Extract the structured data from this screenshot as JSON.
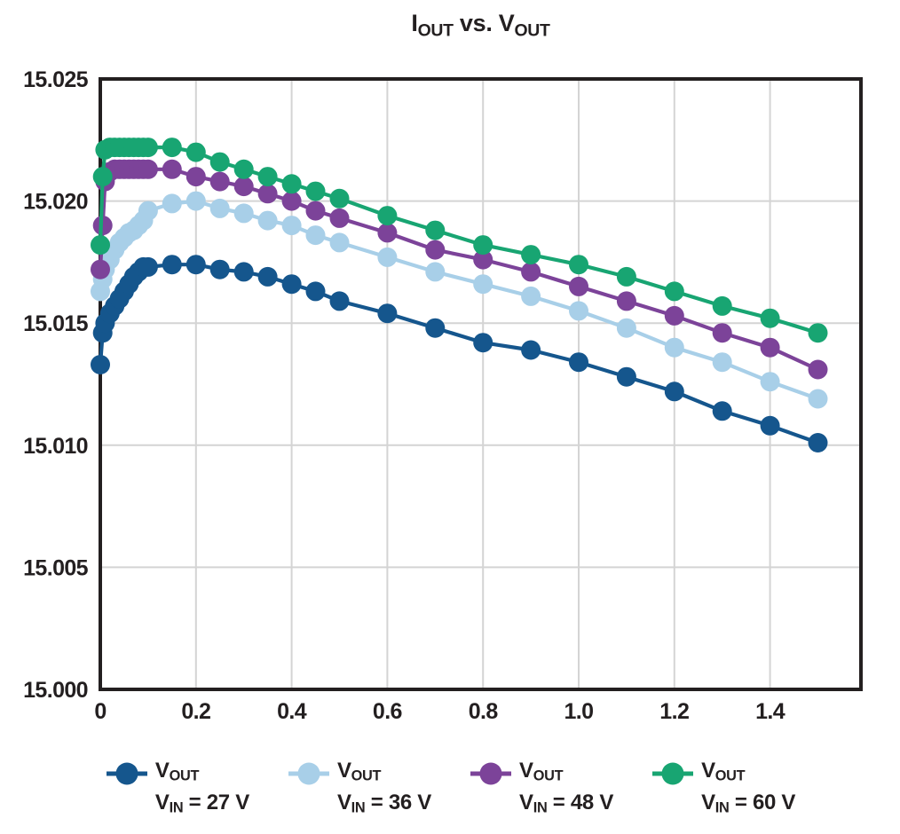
{
  "chart_data": {
    "type": "line",
    "title": "IOUT vs. VOUT",
    "title_parts": [
      {
        "t": "I"
      },
      {
        "t": "OUT",
        "sub": true
      },
      {
        "t": " vs. "
      },
      {
        "t": "V"
      },
      {
        "t": "OUT",
        "sub": true
      }
    ],
    "xlabel": "",
    "ylabel": "",
    "xlim": [
      0,
      1.59
    ],
    "ylim": [
      15.0,
      15.025
    ],
    "x_tick_values": [
      0,
      0.2,
      0.4,
      0.6,
      0.8,
      1.0,
      1.2,
      1.4
    ],
    "x_tick_labels": [
      "0",
      "0.2",
      "0.4",
      "0.6",
      "0.8",
      "1.0",
      "1.2",
      "1.4"
    ],
    "y_tick_values": [
      15.0,
      15.005,
      15.01,
      15.015,
      15.02,
      15.025
    ],
    "y_tick_labels": [
      "15.000",
      "15.005",
      "15.010",
      "15.015",
      "15.020",
      "15.025"
    ],
    "grid": true,
    "legend_position": "bottom",
    "x": [
      0,
      0.005,
      0.01,
      0.02,
      0.03,
      0.04,
      0.05,
      0.06,
      0.07,
      0.08,
      0.09,
      0.1,
      0.15,
      0.2,
      0.25,
      0.3,
      0.35,
      0.4,
      0.45,
      0.5,
      0.6,
      0.7,
      0.8,
      0.9,
      1.0,
      1.1,
      1.2,
      1.3,
      1.4,
      1.5
    ],
    "series": [
      {
        "id": "vin_27",
        "name": "VOUT, VIN = 27 V",
        "color": "#15568d",
        "values": [
          15.0133,
          15.0146,
          15.015,
          15.0154,
          15.0157,
          15.016,
          15.0163,
          15.0166,
          15.0169,
          15.0171,
          15.0173,
          15.0173,
          15.0174,
          15.0174,
          15.0172,
          15.0171,
          15.0169,
          15.0166,
          15.0163,
          15.0159,
          15.0154,
          15.0148,
          15.0142,
          15.0139,
          15.0134,
          15.0128,
          15.0122,
          15.0114,
          15.0108,
          15.0101
        ]
      },
      {
        "id": "vin_36",
        "name": "VOUT, VIN = 36 V",
        "color": "#a8cfe8",
        "values": [
          15.0163,
          15.0168,
          15.0172,
          15.0176,
          15.018,
          15.0183,
          15.0185,
          15.0187,
          15.0188,
          15.019,
          15.0192,
          15.0196,
          15.0199,
          15.02,
          15.0197,
          15.0195,
          15.0192,
          15.019,
          15.0186,
          15.0183,
          15.0177,
          15.0171,
          15.0166,
          15.0161,
          15.0155,
          15.0148,
          15.014,
          15.0134,
          15.0126,
          15.0119
        ]
      },
      {
        "id": "vin_48",
        "name": "VOUT, VIN = 48 V",
        "color": "#7c4399",
        "values": [
          15.0172,
          15.019,
          15.0208,
          15.0212,
          15.0213,
          15.0213,
          15.0213,
          15.0213,
          15.0213,
          15.0213,
          15.0213,
          15.0213,
          15.0213,
          15.021,
          15.0208,
          15.0206,
          15.0203,
          15.02,
          15.0196,
          15.0193,
          15.0187,
          15.018,
          15.0176,
          15.0171,
          15.0165,
          15.0159,
          15.0153,
          15.0146,
          15.014,
          15.0131
        ]
      },
      {
        "id": "vin_60",
        "name": "VOUT, VIN = 60 V",
        "color": "#18a572",
        "values": [
          15.0182,
          15.021,
          15.0221,
          15.0222,
          15.0222,
          15.0222,
          15.0222,
          15.0222,
          15.0222,
          15.0222,
          15.0222,
          15.0222,
          15.0222,
          15.022,
          15.0216,
          15.0213,
          15.021,
          15.0207,
          15.0204,
          15.0201,
          15.0194,
          15.0188,
          15.0182,
          15.0178,
          15.0174,
          15.0169,
          15.0163,
          15.0157,
          15.0152,
          15.0146
        ]
      }
    ],
    "legend": [
      {
        "series": "vin_27",
        "color": "#15568d",
        "text": "VOUT VIN = 27 V",
        "line1_parts": [
          {
            "t": "V"
          },
          {
            "t": "OUT",
            "sub": true
          }
        ],
        "line2_parts": [
          {
            "t": "V"
          },
          {
            "t": "IN",
            "sub": true
          },
          {
            "t": " = 27 V"
          }
        ]
      },
      {
        "series": "vin_36",
        "color": "#a8cfe8",
        "text": "VOUT VIN = 36 V",
        "line1_parts": [
          {
            "t": "V"
          },
          {
            "t": "OUT",
            "sub": true
          }
        ],
        "line2_parts": [
          {
            "t": "V"
          },
          {
            "t": "IN",
            "sub": true
          },
          {
            "t": " = 36 V"
          }
        ]
      },
      {
        "series": "vin_48",
        "color": "#7c4399",
        "text": "VOUT VIN = 48 V",
        "line1_parts": [
          {
            "t": "V"
          },
          {
            "t": "OUT",
            "sub": true
          }
        ],
        "line2_parts": [
          {
            "t": "V"
          },
          {
            "t": "IN",
            "sub": true
          },
          {
            "t": " = 48 V"
          }
        ]
      },
      {
        "series": "vin_60",
        "color": "#18a572",
        "text": "VOUT VIN = 60 V",
        "line1_parts": [
          {
            "t": "V"
          },
          {
            "t": "OUT",
            "sub": true
          }
        ],
        "line2_parts": [
          {
            "t": "V"
          },
          {
            "t": "IN",
            "sub": true
          },
          {
            "t": " = 60 V"
          }
        ]
      }
    ],
    "colors": {
      "frame": "#231f20",
      "grid": "#d4d4d4",
      "text": "#231f20",
      "background": "#ffffff"
    }
  }
}
